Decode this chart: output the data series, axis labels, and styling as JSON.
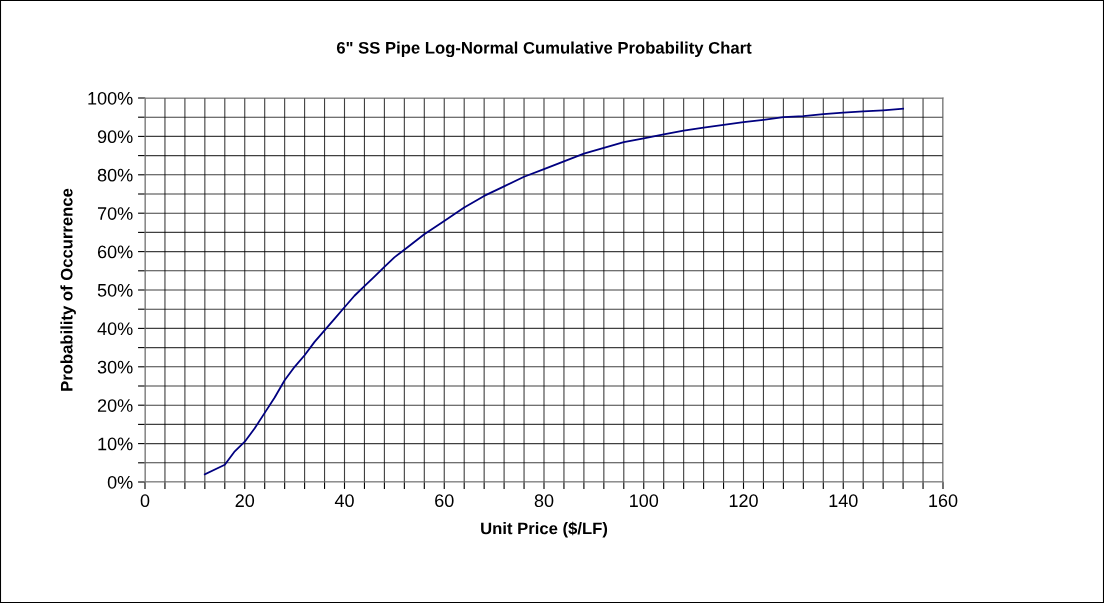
{
  "chart_data": {
    "type": "line",
    "title": "6\" SS Pipe Log-Normal Cumulative Probability Chart",
    "xlabel": "Unit Price ($/LF)",
    "ylabel": "Probability of Occurrence",
    "x": [
      12,
      16,
      18,
      20,
      22,
      24,
      26,
      28,
      30,
      32,
      34,
      36,
      38,
      40,
      42,
      44,
      46,
      48,
      50,
      52,
      56,
      60,
      64,
      68,
      72,
      76,
      80,
      84,
      88,
      92,
      96,
      100,
      104,
      108,
      112,
      116,
      120,
      124,
      128,
      132,
      136,
      140,
      144,
      148,
      152
    ],
    "series": [
      {
        "color": "#000080",
        "values": [
          2,
          4.5,
          8,
          10.5,
          14,
          18,
          22,
          26.5,
          30,
          33,
          36.5,
          39.5,
          42.5,
          45.5,
          48.5,
          51,
          53.5,
          56,
          58.5,
          60.5,
          64.5,
          68,
          71.5,
          74.5,
          77,
          79.5,
          81.5,
          83.5,
          85.5,
          87,
          88.5,
          89.5,
          90.5,
          91.5,
          92.3,
          93,
          93.7,
          94.3,
          95,
          95.3,
          95.8,
          96.2,
          96.5,
          96.8,
          97.2
        ]
      }
    ],
    "xlim": [
      0,
      160
    ],
    "ylim": [
      0,
      100
    ],
    "xticks": [
      0,
      {
        "value": 4,
        "label": null
      },
      {
        "value": 8,
        "label": null
      },
      {
        "value": 12,
        "label": null
      },
      {
        "value": 16,
        "label": null
      },
      20,
      {
        "value": 24,
        "label": null
      },
      {
        "value": 28,
        "label": null
      },
      {
        "value": 32,
        "label": null
      },
      {
        "value": 36,
        "label": null
      },
      40,
      {
        "value": 44,
        "label": null
      },
      {
        "value": 48,
        "label": null
      },
      {
        "value": 52,
        "label": null
      },
      {
        "value": 56,
        "label": null
      },
      60,
      {
        "value": 64,
        "label": null
      },
      {
        "value": 68,
        "label": null
      },
      {
        "value": 72,
        "label": null
      },
      {
        "value": 76,
        "label": null
      },
      80,
      {
        "value": 84,
        "label": null
      },
      {
        "value": 88,
        "label": null
      },
      {
        "value": 92,
        "label": null
      },
      {
        "value": 96,
        "label": null
      },
      100,
      {
        "value": 104,
        "label": null
      },
      {
        "value": 108,
        "label": null
      },
      {
        "value": 112,
        "label": null
      },
      {
        "value": 116,
        "label": null
      },
      120,
      {
        "value": 124,
        "label": null
      },
      {
        "value": 128,
        "label": null
      },
      {
        "value": 132,
        "label": null
      },
      {
        "value": 136,
        "label": null
      },
      140,
      {
        "value": 144,
        "label": null
      },
      {
        "value": 148,
        "label": null
      },
      {
        "value": 152,
        "label": null
      },
      {
        "value": 156,
        "label": null
      },
      160
    ],
    "yticks": [
      {
        "value": 0,
        "label": "0%"
      },
      {
        "value": 5,
        "label": null
      },
      {
        "value": 10,
        "label": "10%"
      },
      {
        "value": 15,
        "label": null
      },
      {
        "value": 20,
        "label": "20%"
      },
      {
        "value": 25,
        "label": null
      },
      {
        "value": 30,
        "label": "30%"
      },
      {
        "value": 35,
        "label": null
      },
      {
        "value": 40,
        "label": "40%"
      },
      {
        "value": 45,
        "label": null
      },
      {
        "value": 50,
        "label": "50%"
      },
      {
        "value": 55,
        "label": null
      },
      {
        "value": 60,
        "label": "60%"
      },
      {
        "value": 65,
        "label": null
      },
      {
        "value": 70,
        "label": "70%"
      },
      {
        "value": 75,
        "label": null
      },
      {
        "value": 80,
        "label": "80%"
      },
      {
        "value": 85,
        "label": null
      },
      {
        "value": 90,
        "label": "90%"
      },
      {
        "value": 95,
        "label": null
      },
      {
        "value": 100,
        "label": "100%"
      }
    ],
    "grid": true,
    "marker": "none",
    "line_style": "solid",
    "legend": false
  }
}
